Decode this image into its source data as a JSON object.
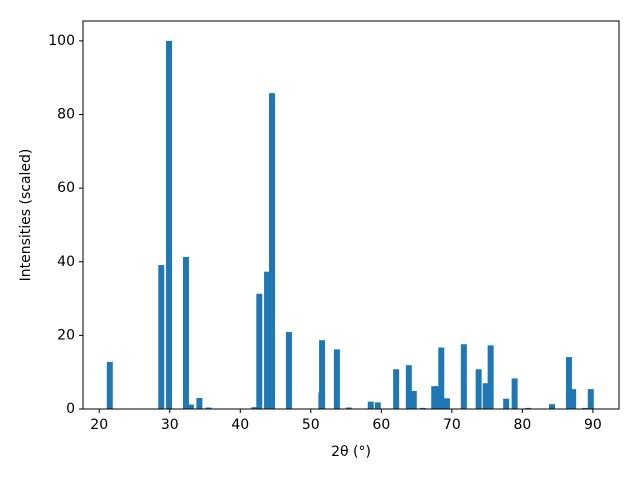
{
  "chart_data": {
    "type": "bar",
    "xlabel": "2θ (°)",
    "ylabel": "Intensities (scaled)",
    "color": "#1f77b4",
    "x": [
      21.5,
      28.8,
      29.9,
      32.3,
      33.0,
      34.2,
      35.5,
      42.0,
      42.7,
      43.8,
      44.5,
      46.9,
      51.5,
      51.6,
      53.7,
      55.4,
      58.5,
      59.5,
      62.1,
      63.9,
      64.6,
      65.9,
      67.5,
      67.9,
      68.5,
      69.3,
      71.7,
      73.8,
      74.8,
      75.5,
      77.7,
      78.9,
      80.8,
      84.2,
      86.6,
      87.2,
      88.9,
      89.7
    ],
    "values": [
      12.8,
      39.1,
      100,
      41.3,
      1.2,
      3.0,
      0.4,
      0.5,
      31.3,
      37.3,
      85.8,
      20.9,
      4.5,
      18.7,
      16.2,
      0.4,
      2.0,
      1.8,
      10.8,
      11.9,
      4.9,
      0.3,
      6.2,
      6.2,
      16.7,
      2.9,
      17.6,
      10.8,
      7.0,
      17.3,
      2.8,
      8.3,
      0.3,
      1.3,
      14.1,
      5.4,
      0.3,
      5.4
    ],
    "xlim": [
      17.7,
      93.7
    ],
    "ylim": [
      0,
      105.4
    ],
    "xticks": [
      20,
      30,
      40,
      50,
      60,
      70,
      80,
      90
    ],
    "yticks": [
      0,
      20,
      40,
      60,
      80,
      100
    ],
    "grid": false
  }
}
